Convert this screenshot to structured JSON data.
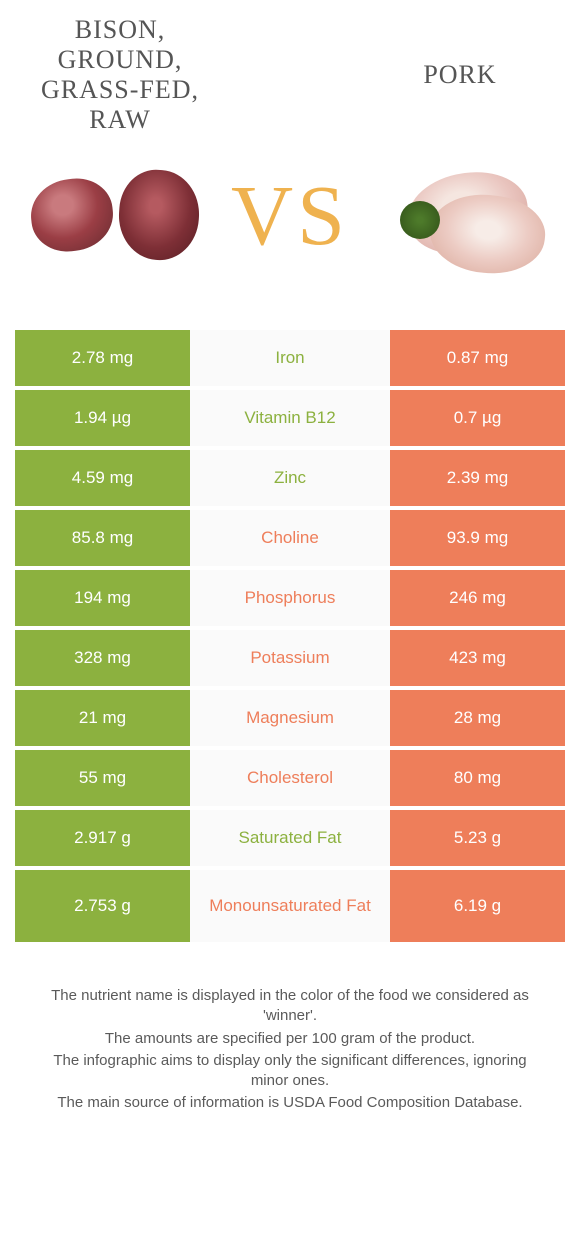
{
  "header": {
    "left_title": "BISON, GROUND, GRASS-FED, RAW",
    "right_title": "PORK",
    "vs": "VS"
  },
  "colors": {
    "green": "#8cb13f",
    "orange": "#ee7e5a",
    "vs_color": "#efb24f",
    "mid_bg": "#fafafa",
    "text": "#5a5a5a"
  },
  "rows": [
    {
      "nutrient": "Iron",
      "left": "2.78 mg",
      "right": "0.87 mg",
      "winner": "left"
    },
    {
      "nutrient": "Vitamin B12",
      "left": "1.94 µg",
      "right": "0.7 µg",
      "winner": "left"
    },
    {
      "nutrient": "Zinc",
      "left": "4.59 mg",
      "right": "2.39 mg",
      "winner": "left"
    },
    {
      "nutrient": "Choline",
      "left": "85.8 mg",
      "right": "93.9 mg",
      "winner": "right"
    },
    {
      "nutrient": "Phosphorus",
      "left": "194 mg",
      "right": "246 mg",
      "winner": "right"
    },
    {
      "nutrient": "Potassium",
      "left": "328 mg",
      "right": "423 mg",
      "winner": "right"
    },
    {
      "nutrient": "Magnesium",
      "left": "21 mg",
      "right": "28 mg",
      "winner": "right"
    },
    {
      "nutrient": "Cholesterol",
      "left": "55 mg",
      "right": "80 mg",
      "winner": "right"
    },
    {
      "nutrient": "Saturated Fat",
      "left": "2.917 g",
      "right": "5.23 g",
      "winner": "left"
    },
    {
      "nutrient": "Monounsaturated Fat",
      "left": "2.753 g",
      "right": "6.19 g",
      "winner": "right"
    }
  ],
  "footnotes": {
    "l1": "The nutrient name is displayed in the color of the food we considered as 'winner'.",
    "l2": "The amounts are specified per 100 gram of the product.",
    "l3": "The infographic aims to display only the significant differences, ignoring minor ones.",
    "l4": "The main source of information is USDA Food Composition Database."
  }
}
